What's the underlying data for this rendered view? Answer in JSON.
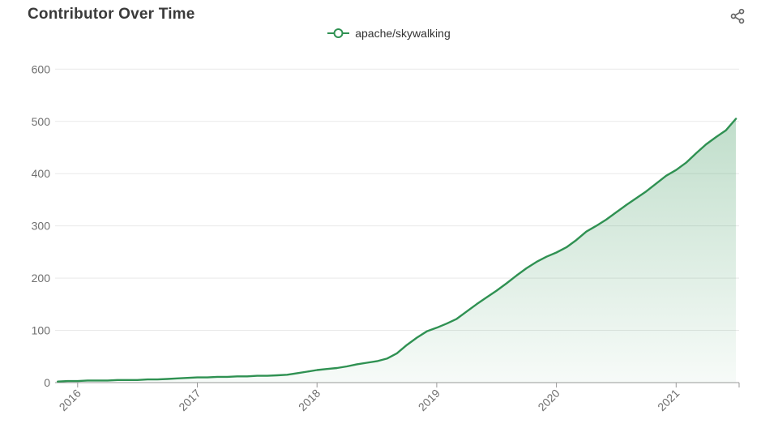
{
  "header": {
    "title": "Contributor Over Time"
  },
  "legend": {
    "label": "apache/skywalking",
    "marker_color": "#2f9152"
  },
  "chart_data": {
    "type": "line",
    "title": "Contributor Over Time",
    "xlabel": "",
    "ylabel": "",
    "ylim": [
      0,
      600
    ],
    "y_ticks": [
      0,
      100,
      200,
      300,
      400,
      500,
      600
    ],
    "x_ticks": [
      "2016",
      "2017",
      "2018",
      "2019",
      "2020",
      "2021"
    ],
    "grid": true,
    "legend_position": "top-center",
    "line_color": "#2f9152",
    "area_gradient": [
      "rgba(47,145,82,0.30)",
      "rgba(47,145,82,0.04)"
    ],
    "axis_color": "#999999",
    "grid_color": "#e9e9e9",
    "label_color": "#6f6f6f",
    "series": [
      {
        "name": "apache/skywalking",
        "x": [
          "2015-11",
          "2015-12",
          "2016-01",
          "2016-02",
          "2016-03",
          "2016-04",
          "2016-05",
          "2016-06",
          "2016-07",
          "2016-08",
          "2016-09",
          "2016-10",
          "2016-11",
          "2016-12",
          "2017-01",
          "2017-02",
          "2017-03",
          "2017-04",
          "2017-05",
          "2017-06",
          "2017-07",
          "2017-08",
          "2017-09",
          "2017-10",
          "2017-11",
          "2017-12",
          "2018-01",
          "2018-02",
          "2018-03",
          "2018-04",
          "2018-05",
          "2018-06",
          "2018-07",
          "2018-08",
          "2018-09",
          "2018-10",
          "2018-11",
          "2018-12",
          "2019-01",
          "2019-02",
          "2019-03",
          "2019-04",
          "2019-05",
          "2019-06",
          "2019-07",
          "2019-08",
          "2019-09",
          "2019-10",
          "2019-11",
          "2019-12",
          "2020-01",
          "2020-02",
          "2020-03",
          "2020-04",
          "2020-05",
          "2020-06",
          "2020-07",
          "2020-08",
          "2020-09",
          "2020-10",
          "2020-11",
          "2020-12",
          "2021-01",
          "2021-02",
          "2021-03",
          "2021-04",
          "2021-05",
          "2021-06",
          "2021-07"
        ],
        "values": [
          2,
          3,
          3,
          4,
          4,
          4,
          5,
          5,
          5,
          6,
          6,
          7,
          8,
          9,
          10,
          10,
          11,
          11,
          12,
          12,
          13,
          13,
          14,
          15,
          18,
          21,
          24,
          26,
          28,
          31,
          35,
          38,
          41,
          46,
          56,
          72,
          86,
          98,
          105,
          113,
          122,
          136,
          150,
          163,
          176,
          190,
          205,
          219,
          231,
          241,
          249,
          259,
          273,
          289,
          300,
          312,
          326,
          340,
          353,
          366,
          381,
          396,
          407,
          421,
          439,
          456,
          470,
          483,
          505
        ]
      }
    ]
  }
}
